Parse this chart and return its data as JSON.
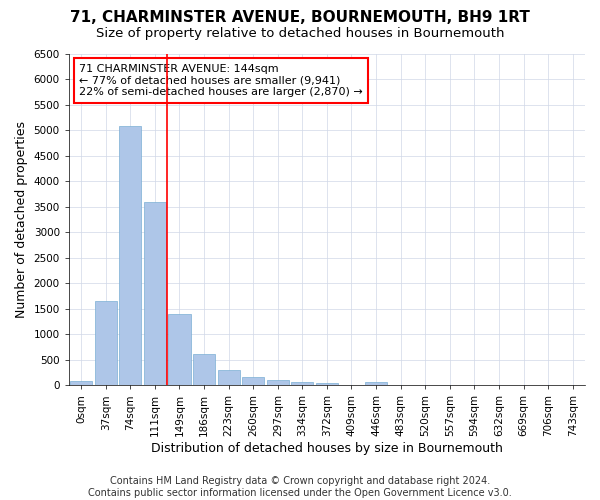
{
  "title": "71, CHARMINSTER AVENUE, BOURNEMOUTH, BH9 1RT",
  "subtitle": "Size of property relative to detached houses in Bournemouth",
  "xlabel": "Distribution of detached houses by size in Bournemouth",
  "ylabel": "Number of detached properties",
  "footer_line1": "Contains HM Land Registry data © Crown copyright and database right 2024.",
  "footer_line2": "Contains public sector information licensed under the Open Government Licence v3.0.",
  "bar_labels": [
    "0sqm",
    "37sqm",
    "74sqm",
    "111sqm",
    "149sqm",
    "186sqm",
    "223sqm",
    "260sqm",
    "297sqm",
    "334sqm",
    "372sqm",
    "409sqm",
    "446sqm",
    "483sqm",
    "520sqm",
    "557sqm",
    "594sqm",
    "632sqm",
    "669sqm",
    "706sqm",
    "743sqm"
  ],
  "bar_values": [
    75,
    1650,
    5080,
    3600,
    1400,
    620,
    305,
    155,
    95,
    55,
    45,
    0,
    55,
    0,
    0,
    0,
    0,
    0,
    0,
    0,
    0
  ],
  "bar_color": "#aec6e8",
  "bar_edge_color": "#7bafd4",
  "vline_color": "red",
  "annotation_text": "71 CHARMINSTER AVENUE: 144sqm\n← 77% of detached houses are smaller (9,941)\n22% of semi-detached houses are larger (2,870) →",
  "annotation_box_color": "white",
  "annotation_box_edge_color": "red",
  "ylim": [
    0,
    6500
  ],
  "yticks": [
    0,
    500,
    1000,
    1500,
    2000,
    2500,
    3000,
    3500,
    4000,
    4500,
    5000,
    5500,
    6000,
    6500
  ],
  "grid_color": "#d0d8e8",
  "bg_color": "#ffffff",
  "plot_bg_color": "#ffffff",
  "title_fontsize": 11,
  "subtitle_fontsize": 9.5,
  "axis_label_fontsize": 9,
  "tick_fontsize": 7.5,
  "annotation_fontsize": 8,
  "footer_fontsize": 7
}
